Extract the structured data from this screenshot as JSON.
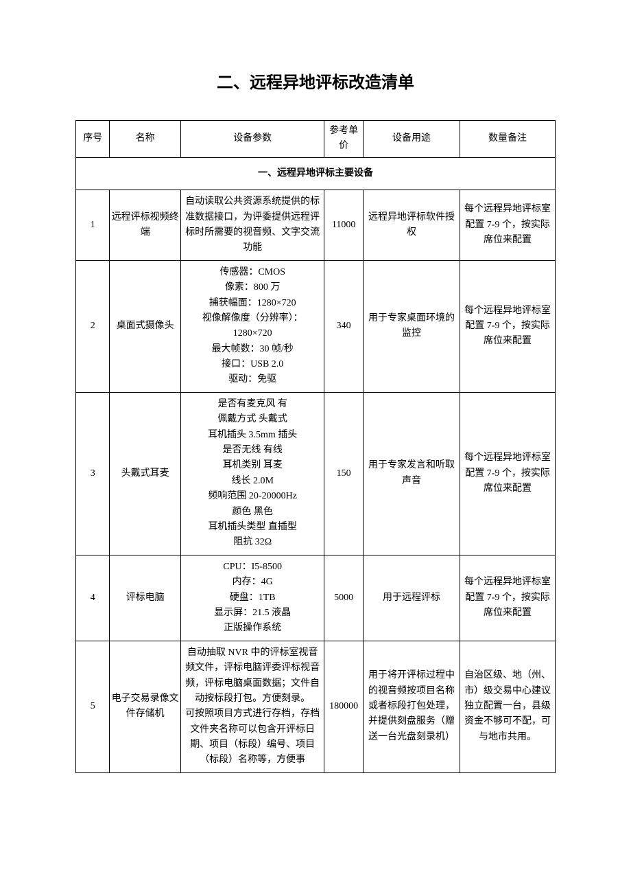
{
  "title": "二、远程异地评标改造清单",
  "headers": {
    "seq": "序号",
    "name": "名称",
    "spec": "设备参数",
    "price": "参考单价",
    "use": "设备用途",
    "note": "数量备注"
  },
  "section1": "一、远程异地评标主要设备",
  "rows": [
    {
      "seq": "1",
      "name": "远程评标视频终端",
      "spec": "自动读取公共资源系统提供的标准数据接口，为评委提供远程评标时所需要的视音频、文字交流功能",
      "price": "11000",
      "use": "远程异地评标软件授权",
      "note": "每个远程异地评标室配置 7-9 个，按实际席位来配置"
    },
    {
      "seq": "2",
      "name": "桌面式摄像头",
      "spec": "传感器：CMOS\n像素：800 万\n捕获幅面：1280×720\n视像解像度（分辨率）：1280×720\n最大帧数：30 帧/秒\n接口：USB 2.0\n驱动：免驱",
      "price": "340",
      "use": "用于专家桌面环境的监控",
      "note": "每个远程异地评标室配置 7-9 个，按实际席位来配置"
    },
    {
      "seq": "3",
      "name": "头戴式耳麦",
      "spec": "是否有麦克风 有\n佩戴方式 头戴式\n耳机插头 3.5mm 插头\n是否无线 有线\n耳机类别 耳麦\n线长 2.0M\n频响范围 20-20000Hz\n颜色 黑色\n耳机插头类型 直插型\n阻抗 32Ω",
      "price": "150",
      "use": "用于专家发言和听取声音",
      "note": "每个远程异地评标室配置 7-9 个，按实际席位来配置"
    },
    {
      "seq": "4",
      "name": "评标电脑",
      "spec": "CPU：I5-8500\n内存：4G\n硬盘：1TB\n显示屏：21.5 液晶\n正版操作系统",
      "price": "5000",
      "use": "用于远程评标",
      "note": "每个远程异地评标室配置 7-9 个，按实际席位来配置"
    },
    {
      "seq": "5",
      "name": "电子交易录像文件存储机",
      "spec": "自动抽取 NVR 中的评标室视音频文件，评标电脑评委评标视音频，评标电脑桌面数据；文件自动按标段打包。方便刻录。\n可按照项目方式进行存档，存档文件夹名称可以包含开评标日期、项目（标段）编号、项目（标段）名称等，方便事",
      "price": "180000",
      "use": "用于将开评标过程中的视音频按项目名称或者标段打包处理，并提供刻盘服务（赠送一台光盘刻录机）",
      "note": "自治区级、地（州、市）级交易中心建议独立配置一台，县级资金不够可不配，可与地市共用。"
    }
  ]
}
